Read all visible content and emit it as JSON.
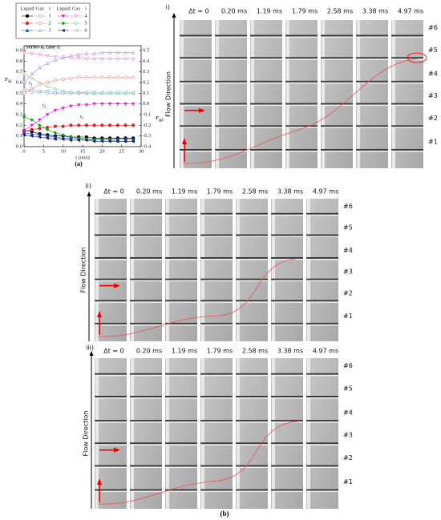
{
  "chart_data": {
    "type": "line",
    "title": "Series-a, case-3",
    "panel_label": "(a)",
    "x_label": "t (min)",
    "y_label": {
      "main": "F",
      "sub": "l,i"
    },
    "y2_label": {
      "main": "F",
      "sub": "g,i"
    },
    "legend_headers": [
      "Liquid",
      "Gas",
      "i",
      "Liquid",
      "Gas",
      "i"
    ],
    "annotations": [
      {
        "main": "t",
        "sub": "1"
      },
      {
        "main": "t",
        "sub": "2"
      },
      {
        "main": "t",
        "sub": "3"
      }
    ],
    "xlim": [
      0,
      30
    ],
    "xticks": [
      0,
      5,
      10,
      15,
      20,
      25,
      30
    ],
    "ylim": [
      0,
      0.9
    ],
    "yticks": [
      {
        "value": 0,
        "label": "0.0"
      },
      0.1,
      0.2,
      0.3,
      0.4,
      0.5,
      0.6,
      0.7,
      0.8,
      0.9
    ],
    "y2lim": [
      -0.4,
      0.5
    ],
    "y2ticks": [
      -0.4,
      -0.3,
      -0.2,
      -0.1,
      {
        "value": 0,
        "label": "0.0"
      },
      0.1,
      0.2,
      0.3,
      0.4,
      0.5
    ],
    "x": [
      0,
      2,
      4,
      6,
      8,
      10,
      12,
      14,
      16,
      18,
      20,
      22,
      24,
      26,
      28
    ],
    "series": [
      {
        "name": "1",
        "color": "#000000",
        "marker": "circle",
        "filled": true,
        "values": [
          0.15,
          0.14,
          0.12,
          0.11,
          0.1,
          0.1,
          0.09,
          0.09,
          0.09,
          0.08,
          0.08,
          0.08,
          0.08,
          0.08,
          0.08
        ]
      },
      {
        "name": "2",
        "color": "#e02020",
        "marker": "circle",
        "filled": true,
        "values": [
          0.14,
          0.16,
          0.17,
          0.18,
          0.19,
          0.19,
          0.2,
          0.2,
          0.2,
          0.2,
          0.2,
          0.2,
          0.2,
          0.2,
          0.2
        ]
      },
      {
        "name": "3",
        "color": "#1f3fd0",
        "marker": "triangle-up",
        "filled": true,
        "values": [
          0.13,
          0.12,
          0.11,
          0.1,
          0.09,
          0.08,
          0.08,
          0.07,
          0.07,
          0.07,
          0.07,
          0.07,
          0.07,
          0.07,
          0.07
        ]
      },
      {
        "name": "4",
        "color": "#e020e0",
        "marker": "triangle-down",
        "filled": true,
        "values": [
          0.15,
          0.2,
          0.25,
          0.3,
          0.34,
          0.36,
          0.38,
          0.39,
          0.39,
          0.4,
          0.4,
          0.4,
          0.4,
          0.4,
          0.4
        ]
      },
      {
        "name": "5",
        "color": "#10a020",
        "marker": "diamond",
        "filled": true,
        "values": [
          0.28,
          0.25,
          0.2,
          0.16,
          0.13,
          0.11,
          0.09,
          0.08,
          0.07,
          0.06,
          0.06,
          0.06,
          0.05,
          0.05,
          0.05
        ]
      },
      {
        "name": "6",
        "color": "#102070",
        "marker": "triangle-left",
        "filled": true,
        "values": [
          0.11,
          0.1,
          0.09,
          0.08,
          0.07,
          0.07,
          0.06,
          0.06,
          0.06,
          0.05,
          0.05,
          0.05,
          0.05,
          0.05,
          0.05
        ]
      },
      {
        "color": "#a0a0a0",
        "marker": "circle",
        "filled": false,
        "axis": "y2",
        "values": [
          0.12,
          0.11,
          0.11,
          0.1,
          0.1,
          0.1,
          0.1,
          0.1,
          0.1,
          0.1,
          0.1,
          0.1,
          0.1,
          0.1,
          0.1
        ]
      },
      {
        "color": "#f08080",
        "marker": "circle",
        "filled": false,
        "axis": "y2",
        "values": [
          0.1,
          0.14,
          0.18,
          0.2,
          0.22,
          0.23,
          0.24,
          0.25,
          0.25,
          0.25,
          0.25,
          0.25,
          0.25,
          0.25,
          0.25
        ]
      },
      {
        "color": "#a090e0",
        "marker": "triangle-up",
        "filled": false,
        "axis": "y2",
        "values": [
          0.2,
          0.28,
          0.34,
          0.38,
          0.41,
          0.43,
          0.45,
          0.46,
          0.47,
          0.47,
          0.48,
          0.48,
          0.48,
          0.48,
          0.48
        ]
      },
      {
        "color": "#f080d0",
        "marker": "triangle-down",
        "filled": false,
        "axis": "y2",
        "values": [
          0.48,
          0.47,
          0.46,
          0.45,
          0.44,
          0.44,
          0.43,
          0.43,
          0.42,
          0.42,
          0.42,
          0.42,
          0.42,
          0.42,
          0.42
        ]
      },
      {
        "color": "#80d080",
        "marker": "diamond",
        "filled": false,
        "axis": "y2",
        "values": [
          0.28,
          0.24,
          0.2,
          0.16,
          0.14,
          0.12,
          0.11,
          0.11,
          0.1,
          0.1,
          0.1,
          0.1,
          0.1,
          0.1,
          0.1
        ]
      },
      {
        "color": "#80b0e0",
        "marker": "triangle-left",
        "filled": false,
        "axis": "y2",
        "values": [
          0.14,
          0.13,
          0.12,
          0.12,
          0.11,
          0.11,
          0.11,
          0.11,
          0.11,
          0.11,
          0.11,
          0.11,
          0.11,
          0.11,
          0.11
        ]
      }
    ]
  },
  "photo_panels": [
    {
      "label": "i)",
      "axis_label": "Flow Direction",
      "times": [
        "Δt = 0",
        "0.20 ms",
        "1.19 ms",
        "1.79 ms",
        "2.58 ms",
        "3.38 ms",
        "4.97 ms"
      ],
      "channels": [
        "#6",
        "#5",
        "#4",
        "#3",
        "#2",
        "#1"
      ]
    },
    {
      "label": "ii)",
      "axis_label": "Flow Direction",
      "times": [
        "Δt = 0",
        "0.20 ms",
        "1.19 ms",
        "1.79 ms",
        "2.58 ms",
        "3.38 ms",
        "4.97 ms"
      ],
      "channels": [
        "#6",
        "#5",
        "#4",
        "#3",
        "#2",
        "#1"
      ]
    },
    {
      "label": "iii)",
      "axis_label": "Flow Direction",
      "times": [
        "Δt = 0",
        "0.20 ms",
        "1.19 ms",
        "1.79 ms",
        "2.58 ms",
        "3.38 ms",
        "4.97 ms"
      ],
      "channels": [
        "#6",
        "#5",
        "#4",
        "#3",
        "#2",
        "#1"
      ]
    }
  ],
  "photo_caption": "(b)"
}
